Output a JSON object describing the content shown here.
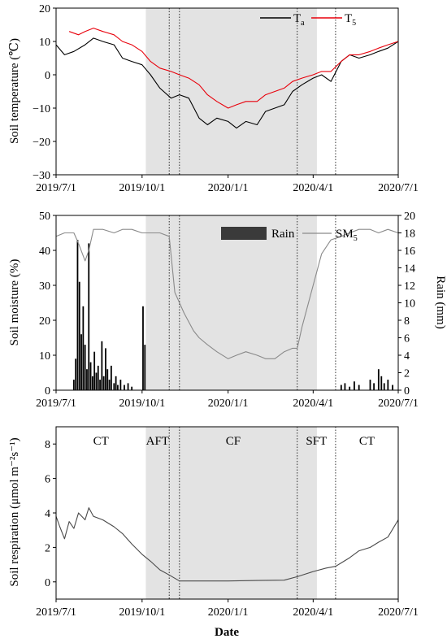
{
  "x_axis": {
    "label": "Date",
    "ticks": [
      "2019/7/1",
      "2019/10/1",
      "2020/1/1",
      "2020/4/1",
      "2020/7/1"
    ]
  },
  "phases": [
    {
      "label": "CT",
      "start": "2019/7/1",
      "end": "2019/10/5",
      "shaded": false
    },
    {
      "label": "AFT",
      "start": "2019/10/5",
      "end": "2019/10/30",
      "shaded": true
    },
    {
      "label": "CF",
      "start": "2019/10/30",
      "end": "2020/3/15",
      "shaded": true
    },
    {
      "label": "SFT",
      "start": "2020/3/15",
      "end": "2020/4/25",
      "shaded": false
    },
    {
      "label": "CT",
      "start": "2020/4/25",
      "end": "2020/7/1",
      "shaded": false
    }
  ],
  "shade_range": [
    "2019/10/5",
    "2020/4/5"
  ],
  "boundary_dates": [
    "2019/10/30",
    "2019/11/10",
    "2020/3/15",
    "2020/4/25"
  ],
  "chart_data": [
    {
      "type": "line",
      "ylabel": "Soil temperature (℃)",
      "ylim": [
        -30,
        20
      ],
      "yticks": [
        "−30",
        "−20",
        "−10",
        "0",
        "10",
        "20"
      ],
      "legend": {
        "placement": "top-right",
        "entries": [
          {
            "name": "T",
            "sub": "a",
            "color": "#000000"
          },
          {
            "name": "T",
            "sub": "5",
            "color": "#e8000b"
          }
        ]
      },
      "series": [
        {
          "name": "Ta",
          "color": "#000000",
          "points": [
            [
              "2019/7/1",
              9
            ],
            [
              "2019/7/10",
              6
            ],
            [
              "2019/7/20",
              7
            ],
            [
              "2019/8/1",
              9
            ],
            [
              "2019/8/10",
              11
            ],
            [
              "2019/8/20",
              10
            ],
            [
              "2019/9/1",
              9
            ],
            [
              "2019/9/10",
              5
            ],
            [
              "2019/9/20",
              4
            ],
            [
              "2019/10/1",
              3
            ],
            [
              "2019/10/10",
              0
            ],
            [
              "2019/10/20",
              -4
            ],
            [
              "2019/11/1",
              -7
            ],
            [
              "2019/11/10",
              -6
            ],
            [
              "2019/11/20",
              -7
            ],
            [
              "2019/12/1",
              -13
            ],
            [
              "2019/12/10",
              -15
            ],
            [
              "2019/12/20",
              -13
            ],
            [
              "2020/1/1",
              -14
            ],
            [
              "2020/1/10",
              -16
            ],
            [
              "2020/1/20",
              -14
            ],
            [
              "2020/2/1",
              -15
            ],
            [
              "2020/2/10",
              -11
            ],
            [
              "2020/2/20",
              -10
            ],
            [
              "2020/3/1",
              -9
            ],
            [
              "2020/3/10",
              -5
            ],
            [
              "2020/3/20",
              -3
            ],
            [
              "2020/4/1",
              -1
            ],
            [
              "2020/4/10",
              0
            ],
            [
              "2020/4/20",
              -2
            ],
            [
              "2020/5/1",
              4
            ],
            [
              "2020/5/10",
              6
            ],
            [
              "2020/5/20",
              5
            ],
            [
              "2020/6/1",
              6
            ],
            [
              "2020/6/10",
              7
            ],
            [
              "2020/6/20",
              8
            ],
            [
              "2020/7/1",
              10
            ]
          ]
        },
        {
          "name": "T5",
          "color": "#e8000b",
          "points": [
            [
              "2019/7/15",
              13
            ],
            [
              "2019/7/25",
              12
            ],
            [
              "2019/8/1",
              13
            ],
            [
              "2019/8/10",
              14
            ],
            [
              "2019/8/20",
              13
            ],
            [
              "2019/9/1",
              12
            ],
            [
              "2019/9/10",
              10
            ],
            [
              "2019/9/20",
              9
            ],
            [
              "2019/10/1",
              7
            ],
            [
              "2019/10/10",
              4
            ],
            [
              "2019/10/20",
              2
            ],
            [
              "2019/11/1",
              1
            ],
            [
              "2019/11/10",
              0
            ],
            [
              "2019/11/20",
              -1
            ],
            [
              "2019/12/1",
              -3
            ],
            [
              "2019/12/10",
              -6
            ],
            [
              "2019/12/20",
              -8
            ],
            [
              "2020/1/1",
              -10
            ],
            [
              "2020/1/10",
              -9
            ],
            [
              "2020/1/20",
              -8
            ],
            [
              "2020/2/1",
              -8
            ],
            [
              "2020/2/10",
              -6
            ],
            [
              "2020/2/20",
              -5
            ],
            [
              "2020/3/1",
              -4
            ],
            [
              "2020/3/10",
              -2
            ],
            [
              "2020/3/20",
              -1
            ],
            [
              "2020/4/1",
              0
            ],
            [
              "2020/4/10",
              1
            ],
            [
              "2020/4/20",
              1
            ],
            [
              "2020/5/1",
              4
            ],
            [
              "2020/5/10",
              6
            ],
            [
              "2020/5/20",
              6
            ],
            [
              "2020/6/1",
              7
            ],
            [
              "2020/6/10",
              8
            ],
            [
              "2020/6/20",
              9
            ],
            [
              "2020/7/1",
              10
            ]
          ]
        }
      ]
    },
    {
      "type": "line+bar",
      "ylabel": "Soil moisture (%)",
      "ylim": [
        0,
        50
      ],
      "yticks": [
        "0",
        "10",
        "20",
        "30",
        "40",
        "50"
      ],
      "y2label": "Rain (mm)",
      "y2lim": [
        0,
        20
      ],
      "y2ticks": [
        "0",
        "2",
        "4",
        "6",
        "8",
        "10",
        "12",
        "14",
        "16",
        "18",
        "20"
      ],
      "legend": {
        "placement": "top-right",
        "entries": [
          {
            "name": "Rain",
            "sub": "",
            "color": "#3a3a3a",
            "style": "bar"
          },
          {
            "name": "SM",
            "sub": "5",
            "color": "#8a8a8a",
            "style": "line"
          }
        ]
      },
      "series": [
        {
          "name": "SM5",
          "color": "#8a8a8a",
          "points": [
            [
              "2019/7/1",
              44
            ],
            [
              "2019/7/10",
              45
            ],
            [
              "2019/7/20",
              45
            ],
            [
              "2019/7/25",
              42
            ],
            [
              "2019/8/1",
              37
            ],
            [
              "2019/8/5",
              40
            ],
            [
              "2019/8/10",
              46
            ],
            [
              "2019/8/20",
              46
            ],
            [
              "2019/9/1",
              45
            ],
            [
              "2019/9/10",
              46
            ],
            [
              "2019/9/20",
              46
            ],
            [
              "2019/10/1",
              45
            ],
            [
              "2019/10/10",
              45
            ],
            [
              "2019/10/20",
              45
            ],
            [
              "2019/10/30",
              44
            ],
            [
              "2019/11/5",
              28
            ],
            [
              "2019/11/15",
              22
            ],
            [
              "2019/11/25",
              17
            ],
            [
              "2019/12/1",
              15
            ],
            [
              "2019/12/10",
              13
            ],
            [
              "2019/12/20",
              11
            ],
            [
              "2020/1/1",
              9
            ],
            [
              "2020/1/10",
              10
            ],
            [
              "2020/1/20",
              11
            ],
            [
              "2020/2/1",
              10
            ],
            [
              "2020/2/10",
              9
            ],
            [
              "2020/2/20",
              9
            ],
            [
              "2020/3/1",
              11
            ],
            [
              "2020/3/10",
              12
            ],
            [
              "2020/3/15",
              12
            ],
            [
              "2020/3/20",
              18
            ],
            [
              "2020/4/1",
              30
            ],
            [
              "2020/4/10",
              39
            ],
            [
              "2020/4/20",
              43
            ],
            [
              "2020/5/1",
              44
            ],
            [
              "2020/5/10",
              45
            ],
            [
              "2020/5/20",
              46
            ],
            [
              "2020/6/1",
              46
            ],
            [
              "2020/6/10",
              45
            ],
            [
              "2020/6/20",
              46
            ],
            [
              "2020/7/1",
              45
            ]
          ]
        },
        {
          "name": "Rain",
          "color": "#000000",
          "bars": [
            [
              "2019/7/20",
              1.2
            ],
            [
              "2019/7/22",
              3.6
            ],
            [
              "2019/7/24",
              17.2
            ],
            [
              "2019/7/26",
              12.4
            ],
            [
              "2019/7/28",
              6.4
            ],
            [
              "2019/7/30",
              9.6
            ],
            [
              "2019/8/1",
              5.2
            ],
            [
              "2019/8/3",
              2.4
            ],
            [
              "2019/8/5",
              16.8
            ],
            [
              "2019/8/7",
              3.2
            ],
            [
              "2019/8/9",
              1.6
            ],
            [
              "2019/8/11",
              4.4
            ],
            [
              "2019/8/13",
              2.0
            ],
            [
              "2019/8/15",
              2.8
            ],
            [
              "2019/8/17",
              1.2
            ],
            [
              "2019/8/19",
              5.6
            ],
            [
              "2019/8/21",
              1.6
            ],
            [
              "2019/8/23",
              4.8
            ],
            [
              "2019/8/25",
              2.4
            ],
            [
              "2019/8/27",
              1.2
            ],
            [
              "2019/8/29",
              2.8
            ],
            [
              "2019/9/1",
              0.8
            ],
            [
              "2019/9/3",
              1.6
            ],
            [
              "2019/9/5",
              0.6
            ],
            [
              "2019/9/8",
              1.2
            ],
            [
              "2019/9/12",
              0.6
            ],
            [
              "2019/9/16",
              0.8
            ],
            [
              "2019/9/20",
              0.4
            ],
            [
              "2019/10/2",
              9.6
            ],
            [
              "2019/10/4",
              5.2
            ],
            [
              "2020/5/1",
              0.6
            ],
            [
              "2020/5/5",
              0.8
            ],
            [
              "2020/5/10",
              0.4
            ],
            [
              "2020/5/15",
              1.0
            ],
            [
              "2020/5/20",
              0.6
            ],
            [
              "2020/6/1",
              1.2
            ],
            [
              "2020/6/5",
              0.8
            ],
            [
              "2020/6/10",
              2.4
            ],
            [
              "2020/6/13",
              1.6
            ],
            [
              "2020/6/16",
              0.8
            ],
            [
              "2020/6/20",
              1.2
            ],
            [
              "2020/6/25",
              0.6
            ]
          ]
        }
      ]
    },
    {
      "type": "line",
      "ylabel": "Soil respiration (μmol m⁻²s⁻¹)",
      "ylim": [
        -1,
        9
      ],
      "yticks": [
        "0",
        "2",
        "4",
        "6",
        "8"
      ],
      "series": [
        {
          "name": "Soil respiration",
          "color": "#4a4a4a",
          "points": [
            [
              "2019/7/1",
              3.8
            ],
            [
              "2019/7/5",
              3.2
            ],
            [
              "2019/7/10",
              2.5
            ],
            [
              "2019/7/15",
              3.5
            ],
            [
              "2019/7/20",
              3.1
            ],
            [
              "2019/7/25",
              4.0
            ],
            [
              "2019/8/1",
              3.6
            ],
            [
              "2019/8/5",
              4.3
            ],
            [
              "2019/8/10",
              3.8
            ],
            [
              "2019/8/20",
              3.6
            ],
            [
              "2019/9/1",
              3.2
            ],
            [
              "2019/9/10",
              2.8
            ],
            [
              "2019/9/20",
              2.2
            ],
            [
              "2019/10/1",
              1.6
            ],
            [
              "2019/10/10",
              1.2
            ],
            [
              "2019/10/20",
              0.7
            ],
            [
              "2019/10/30",
              0.4
            ],
            [
              "2019/11/10",
              0.05
            ],
            [
              "2019/12/1",
              0.05
            ],
            [
              "2020/1/1",
              0.05
            ],
            [
              "2020/2/1",
              0.08
            ],
            [
              "2020/3/1",
              0.1
            ],
            [
              "2020/3/15",
              0.3
            ],
            [
              "2020/4/1",
              0.6
            ],
            [
              "2020/4/15",
              0.8
            ],
            [
              "2020/4/25",
              0.9
            ],
            [
              "2020/5/1",
              1.1
            ],
            [
              "2020/5/10",
              1.4
            ],
            [
              "2020/5/20",
              1.8
            ],
            [
              "2020/6/1",
              2.0
            ],
            [
              "2020/6/10",
              2.3
            ],
            [
              "2020/6/20",
              2.6
            ],
            [
              "2020/7/1",
              3.6
            ]
          ]
        }
      ]
    }
  ]
}
